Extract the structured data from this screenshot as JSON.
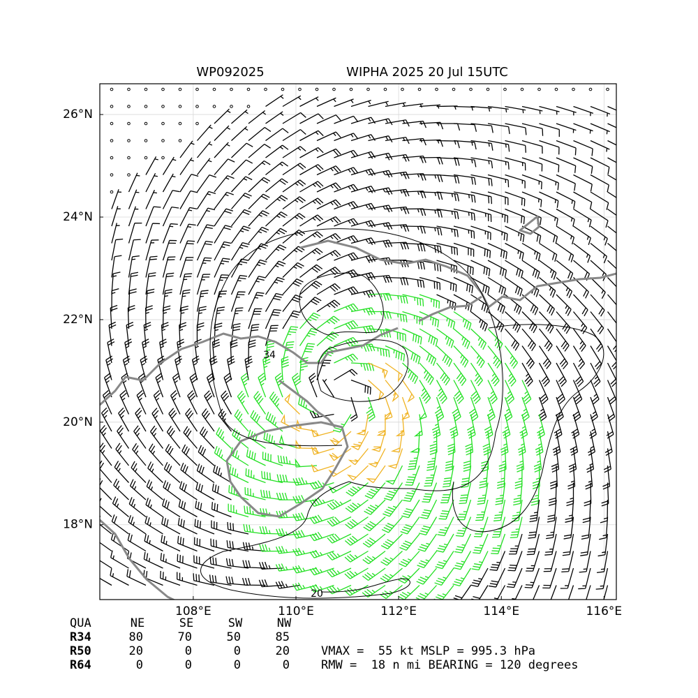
{
  "header": {
    "storm_id": "WP092025",
    "title": "WIPHA 2025 20 Jul 15UTC"
  },
  "map": {
    "xlim": [
      106.18,
      116.24
    ],
    "ylim": [
      16.54,
      26.6
    ],
    "xticks": [
      {
        "value": 108,
        "label": "108°E"
      },
      {
        "value": 110,
        "label": "110°E"
      },
      {
        "value": 112,
        "label": "112°E"
      },
      {
        "value": 114,
        "label": "114°E"
      },
      {
        "value": 116,
        "label": "116°E"
      }
    ],
    "yticks": [
      {
        "value": 18,
        "label": "18°N"
      },
      {
        "value": 20,
        "label": "20°N"
      },
      {
        "value": 22,
        "label": "22°N"
      },
      {
        "value": 24,
        "label": "24°N"
      },
      {
        "value": 26,
        "label": "26°N"
      }
    ],
    "grid": true,
    "contour_labels": [
      34,
      20
    ]
  },
  "table": {
    "header": [
      "QUA",
      "NE",
      "SE",
      "SW",
      "NW"
    ],
    "rows": [
      [
        "R34",
        80,
        70,
        50,
        85
      ],
      [
        "R50",
        20,
        0,
        0,
        20
      ],
      [
        "R64",
        0,
        0,
        0,
        0
      ]
    ]
  },
  "summary": [
    "VMAX =  55 kt MSLP = 995.3 hPa",
    "RMW =  18 n mi BEARING = 120 degrees"
  ]
}
